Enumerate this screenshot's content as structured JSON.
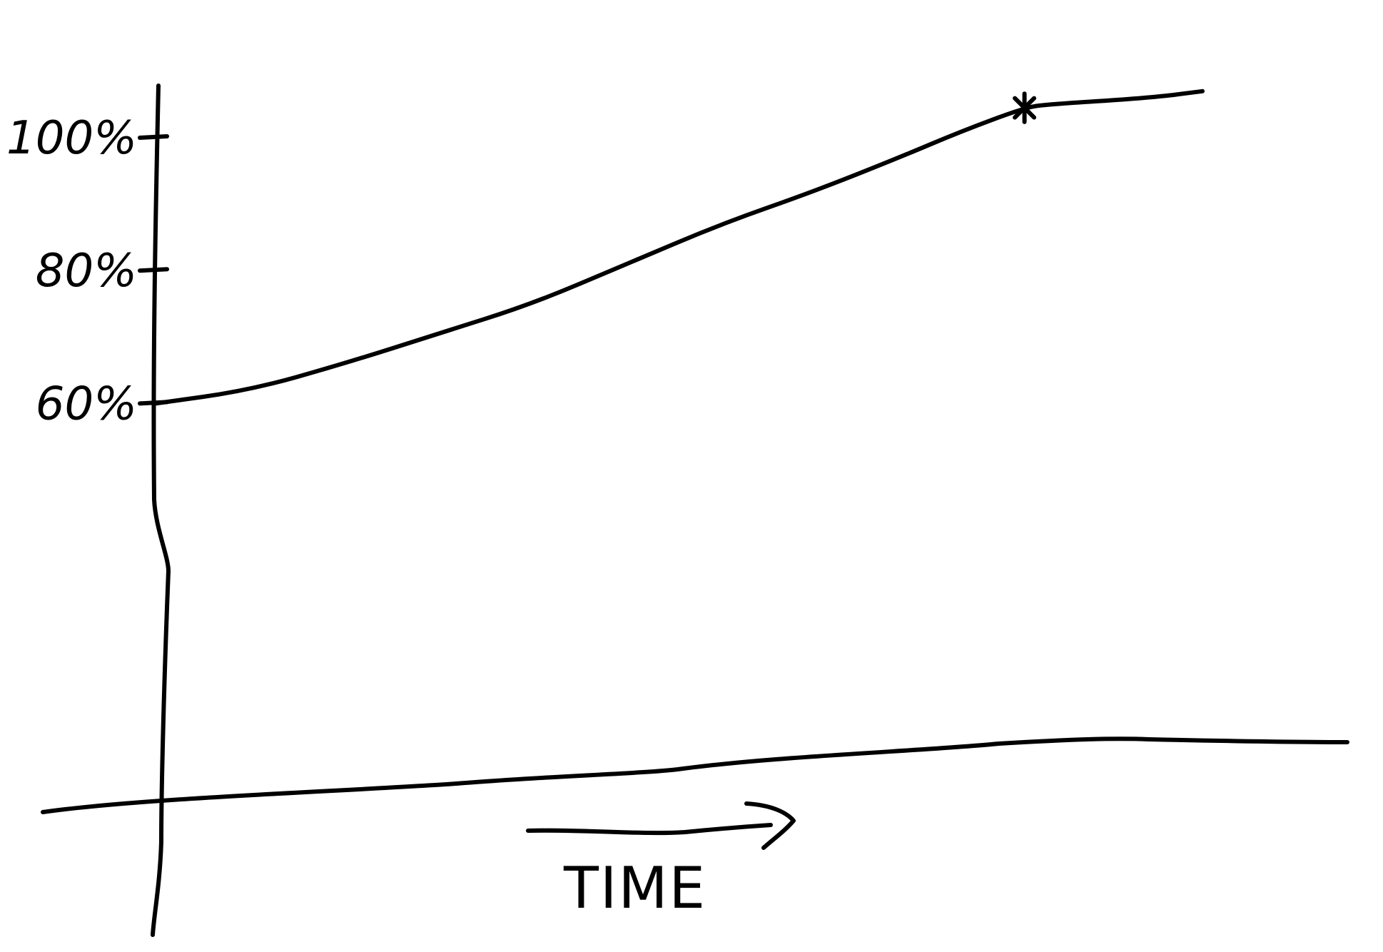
{
  "chart_data": {
    "type": "line",
    "title": "",
    "xlabel": "TIME",
    "ylabel": "",
    "y_ticks": [
      {
        "value": 60,
        "label": "60%"
      },
      {
        "value": 80,
        "label": "80%"
      },
      {
        "value": 100,
        "label": "100%"
      }
    ],
    "ylim": [
      0,
      117
    ],
    "xlim": [
      0,
      10
    ],
    "grid": false,
    "legend": "none",
    "x_axis_arrow": true,
    "series": [
      {
        "values": [
          {
            "x": 0,
            "y": 60
          },
          {
            "x": 0.9,
            "y": 62
          },
          {
            "x": 1.8,
            "y": 66
          },
          {
            "x": 2.7,
            "y": 70.5
          },
          {
            "x": 3.6,
            "y": 75
          },
          {
            "x": 4.5,
            "y": 81
          },
          {
            "x": 5.4,
            "y": 87
          },
          {
            "x": 6.3,
            "y": 92
          },
          {
            "x": 7.1,
            "y": 97
          },
          {
            "x": 7.7,
            "y": 101
          },
          {
            "x": 8.3,
            "y": 104.5
          },
          {
            "x": 8.5,
            "y": 105
          },
          {
            "x": 9.5,
            "y": 106
          },
          {
            "x": 10,
            "y": 107
          }
        ]
      }
    ],
    "annotations": [
      {
        "type": "star-marker",
        "x": 8.3,
        "y": 104.5
      }
    ]
  }
}
